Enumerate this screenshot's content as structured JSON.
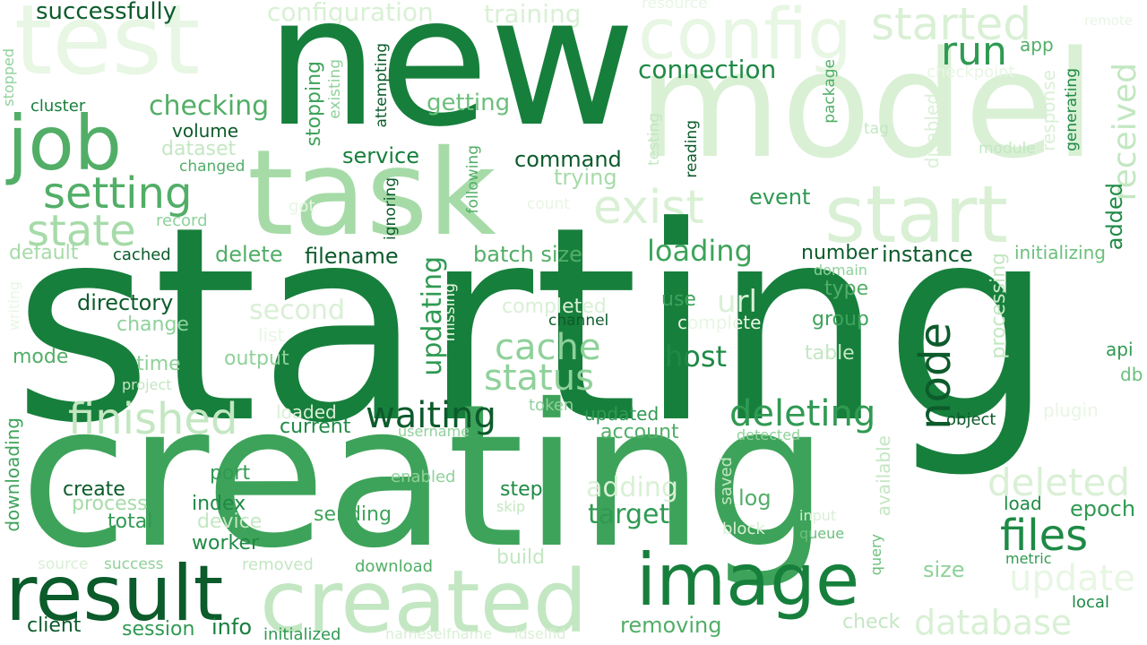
{
  "words": {
    "starting": "starting",
    "creating": "creating",
    "new": "new",
    "model": "model",
    "task": "task",
    "test": "test",
    "config": "config",
    "start": "start",
    "result": "result",
    "image": "image",
    "created": "created",
    "job": "job",
    "node": "node",
    "setting": "setting",
    "state": "state",
    "finished": "finished",
    "exist": "exist",
    "run": "run",
    "files": "files",
    "deleting": "deleting",
    "waiting": "waiting",
    "cache": "cache",
    "status": "status",
    "loading": "loading",
    "deleted": "deleted",
    "update": "update",
    "database": "database",
    "connection": "connection",
    "successfully": "successfully",
    "configuration": "configuration",
    "training": "training",
    "started": "started",
    "checking": "checking",
    "getting": "getting",
    "host": "host",
    "updating": "updating",
    "target": "target",
    "adding": "adding",
    "url": "url",
    "second": "second",
    "directory": "directory",
    "command": "command",
    "service": "service",
    "trying": "trying",
    "event": "event",
    "delete": "delete",
    "filename": "filename",
    "batch_size": "batch size",
    "number": "number",
    "instance": "instance",
    "initializing": "initializing",
    "received": "received",
    "added": "added",
    "processing": "processing",
    "epoch": "epoch",
    "size": "size",
    "log": "log",
    "step": "step",
    "create": "create",
    "index": "index",
    "total": "total",
    "process": "process",
    "sending": "sending",
    "worker": "worker",
    "device": "device",
    "client": "client",
    "session": "session",
    "info": "info",
    "initialized": "initialized",
    "removing": "removing",
    "check": "check",
    "download": "download",
    "removed": "removed",
    "build": "build",
    "success": "success",
    "source": "source",
    "current": "current",
    "loaded": "loaded",
    "username": "username",
    "token": "token",
    "updated": "updated",
    "account": "account",
    "detected": "detected",
    "enabled": "enabled",
    "skip": "skip",
    "saved": "saved",
    "block": "block",
    "input": "input",
    "queue": "queue",
    "query": "query",
    "available": "available",
    "load": "load",
    "metric": "metric",
    "local": "local",
    "port": "port",
    "output": "output",
    "time": "time",
    "project": "project",
    "mode": "mode",
    "change": "change",
    "writing": "writing",
    "downloading": "downloading",
    "default": "default",
    "cached": "cached",
    "record": "record",
    "changed": "changed",
    "dataset": "dataset",
    "volume": "volume",
    "cluster": "cluster",
    "stopped": "stopped",
    "stopping": "stopping",
    "existing": "existing",
    "attempting": "attempting",
    "ignoring": "ignoring",
    "got": "got",
    "following": "following",
    "count": "count",
    "testing": "testing",
    "reading": "reading",
    "package": "package",
    "tag": "tag",
    "checkpoint": "checkpoint",
    "resource": "resource",
    "app": "app",
    "remote": "remote",
    "response": "response",
    "disabled": "disabled",
    "module": "module",
    "generating": "generating",
    "domain": "domain",
    "type": "type",
    "group": "group",
    "table": "table",
    "use": "use",
    "channel": "channel",
    "complete": "complete",
    "completed": "completed",
    "list": "list",
    "missing": "missing",
    "api": "api",
    "db": "db",
    "object": "object",
    "plugin": "plugin",
    "nameselfname": "nameselfname",
    "idselfid": "idselfid"
  },
  "palette": {
    "darkest": "#0c5b2b",
    "dark": "#177f3c",
    "mid": "#3ea35a",
    "light": "#8fd19a",
    "lightest": "#e8f6e4"
  }
}
